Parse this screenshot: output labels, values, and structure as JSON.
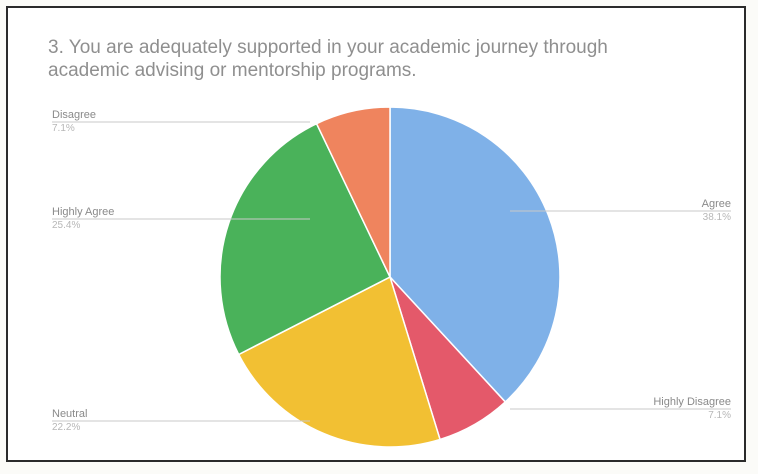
{
  "chart_data": {
    "type": "pie",
    "title": "3. You are adequately supported in your academic journey through academic advising or mentorship programs.",
    "slices": [
      {
        "label": "Agree",
        "percent": 38.1,
        "percent_label": "38.1%",
        "color": "#7fb1e8"
      },
      {
        "label": "Highly Disagree",
        "percent": 7.1,
        "percent_label": "7.1%",
        "color": "#e4596a"
      },
      {
        "label": "Neutral",
        "percent": 22.2,
        "percent_label": "22.2%",
        "color": "#f2c033"
      },
      {
        "label": "Highly Agree",
        "percent": 25.4,
        "percent_label": "25.4%",
        "color": "#4ab25a"
      },
      {
        "label": "Disagree",
        "percent": 7.1,
        "percent_label": "7.1%",
        "color": "#ef845e"
      }
    ],
    "legend": "none",
    "label_placement": "outside-with-leader-lines"
  }
}
